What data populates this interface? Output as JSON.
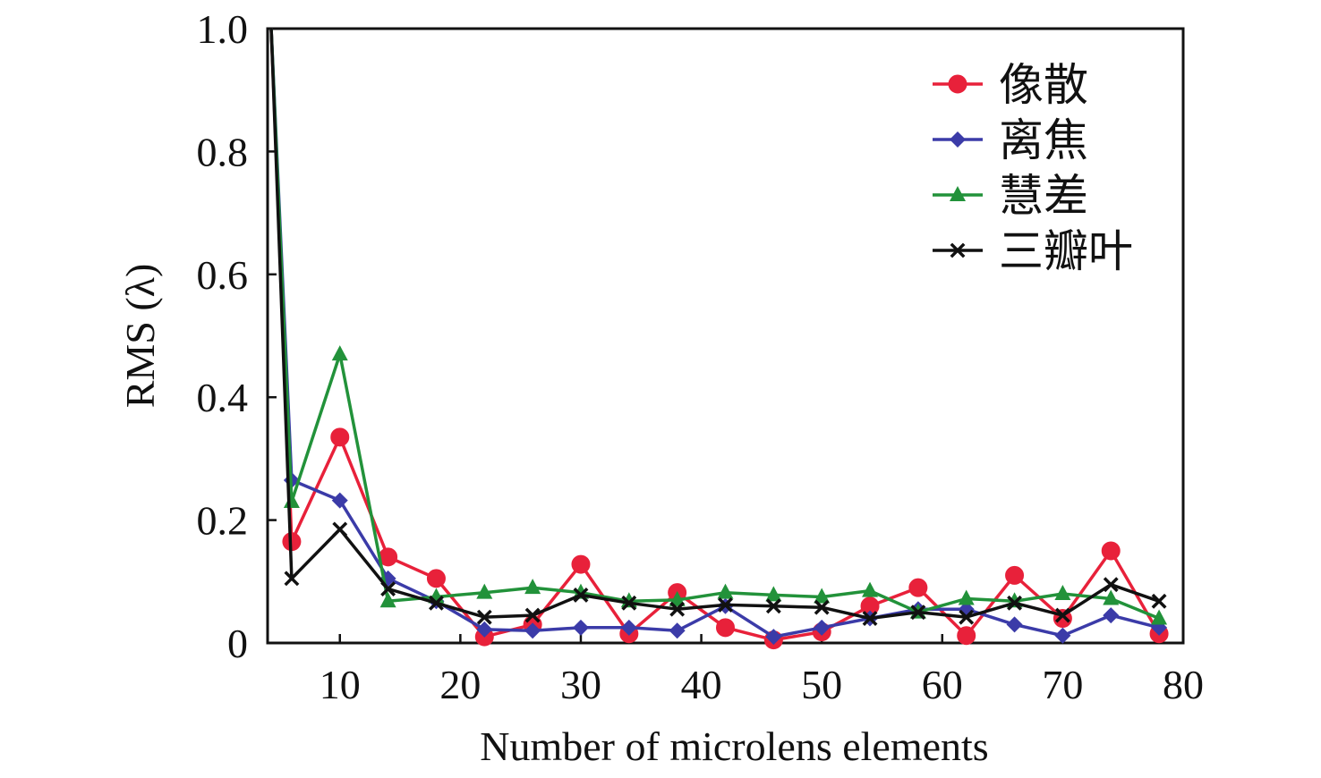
{
  "chart_data": {
    "type": "line",
    "title": "",
    "xlabel": "Number of microlens elements",
    "ylabel": "RMS (λ)",
    "xlim": [
      4,
      80
    ],
    "ylim": [
      0,
      1.0
    ],
    "x_ticks": [
      10,
      20,
      30,
      40,
      50,
      60,
      70,
      80
    ],
    "x_tick_labels": [
      "10",
      "20",
      "30",
      "40",
      "50",
      "60",
      "70",
      "80"
    ],
    "y_ticks": [
      0,
      0.2,
      0.4,
      0.6,
      0.8,
      1.0
    ],
    "y_tick_labels": [
      "0",
      "0.2",
      "0.4",
      "0.6",
      "0.8",
      "1.0"
    ],
    "grid": false,
    "legend_position": "top-right",
    "x": [
      6,
      10,
      14,
      18,
      22,
      26,
      30,
      34,
      38,
      42,
      46,
      50,
      54,
      58,
      62,
      66,
      70,
      74,
      78
    ],
    "series": [
      {
        "name": "像散",
        "color": "#e8213a",
        "marker": "circle",
        "values": [
          0.165,
          0.335,
          0.14,
          0.105,
          0.01,
          0.03,
          0.128,
          0.015,
          0.082,
          0.025,
          0.005,
          0.018,
          0.06,
          0.09,
          0.012,
          0.11,
          0.04,
          0.15,
          0.015
        ]
      },
      {
        "name": "离焦",
        "color": "#3b3ba8",
        "marker": "diamond",
        "values": [
          0.265,
          0.232,
          0.105,
          0.068,
          0.022,
          0.02,
          0.025,
          0.025,
          0.02,
          0.06,
          0.01,
          0.025,
          0.04,
          0.055,
          0.055,
          0.03,
          0.012,
          0.045,
          0.025
        ]
      },
      {
        "name": "慧差",
        "color": "#22923a",
        "marker": "triangle",
        "values": [
          0.23,
          0.47,
          0.068,
          0.075,
          0.082,
          0.09,
          0.082,
          0.068,
          0.07,
          0.082,
          0.078,
          0.075,
          0.085,
          0.05,
          0.072,
          0.068,
          0.08,
          0.072,
          0.04
        ]
      },
      {
        "name": "三瓣叶",
        "color": "#111111",
        "marker": "x",
        "values": [
          0.105,
          0.185,
          0.088,
          0.065,
          0.042,
          0.045,
          0.078,
          0.065,
          0.055,
          0.062,
          0.06,
          0.058,
          0.04,
          0.05,
          0.042,
          0.065,
          0.045,
          0.095,
          0.068
        ]
      }
    ],
    "spike": {
      "x_start": 4.3,
      "y_start": 1.0,
      "joins_x": 6
    }
  }
}
